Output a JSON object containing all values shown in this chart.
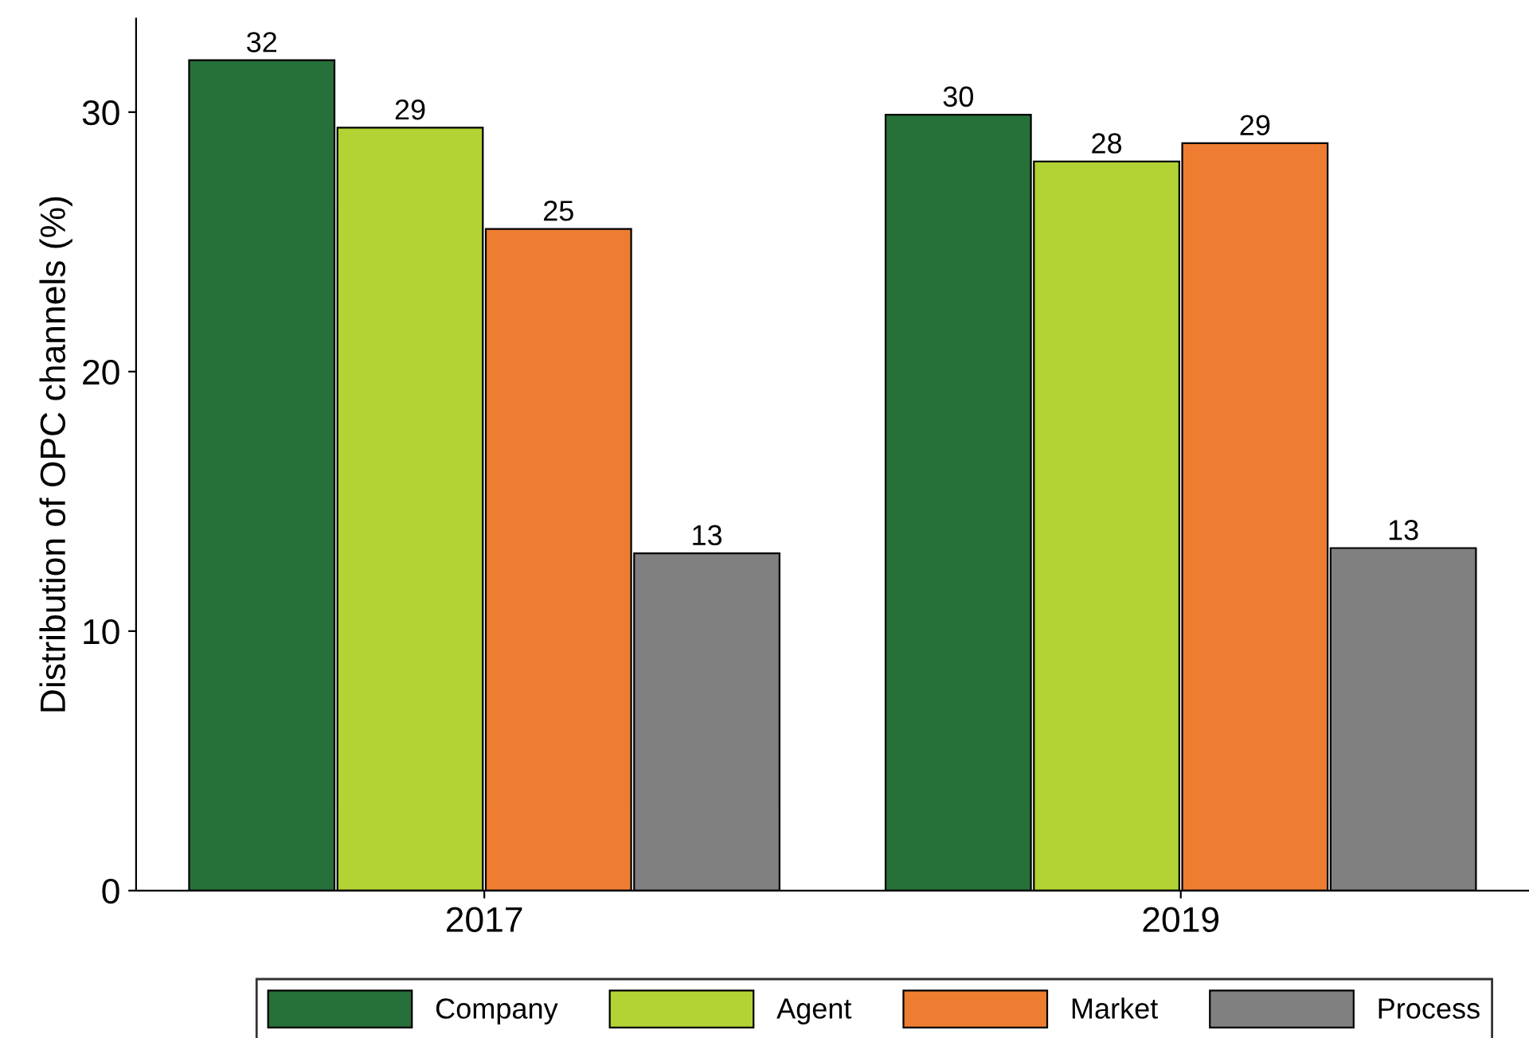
{
  "chart_data": {
    "type": "bar",
    "ylabel": "Distribution of OPC channels (%)",
    "categories": [
      "2017",
      "2019"
    ],
    "series": [
      {
        "name": "Company",
        "color": "#26703a",
        "values": [
          32.0,
          29.9
        ],
        "value_labels": [
          "32",
          "30"
        ]
      },
      {
        "name": "Agent",
        "color": "#b3d334",
        "values": [
          29.4,
          28.1
        ],
        "value_labels": [
          "29",
          "28"
        ]
      },
      {
        "name": "Market",
        "color": "#ef7d31",
        "values": [
          25.5,
          28.8
        ],
        "value_labels": [
          "25",
          "29"
        ]
      },
      {
        "name": "Process",
        "color": "#808080",
        "values": [
          13.0,
          13.2
        ],
        "value_labels": [
          "13",
          "13"
        ]
      }
    ],
    "ylim": [
      0,
      33.6
    ],
    "yticks": [
      0,
      10,
      20,
      30
    ],
    "grid": false,
    "legend": "bottom"
  }
}
